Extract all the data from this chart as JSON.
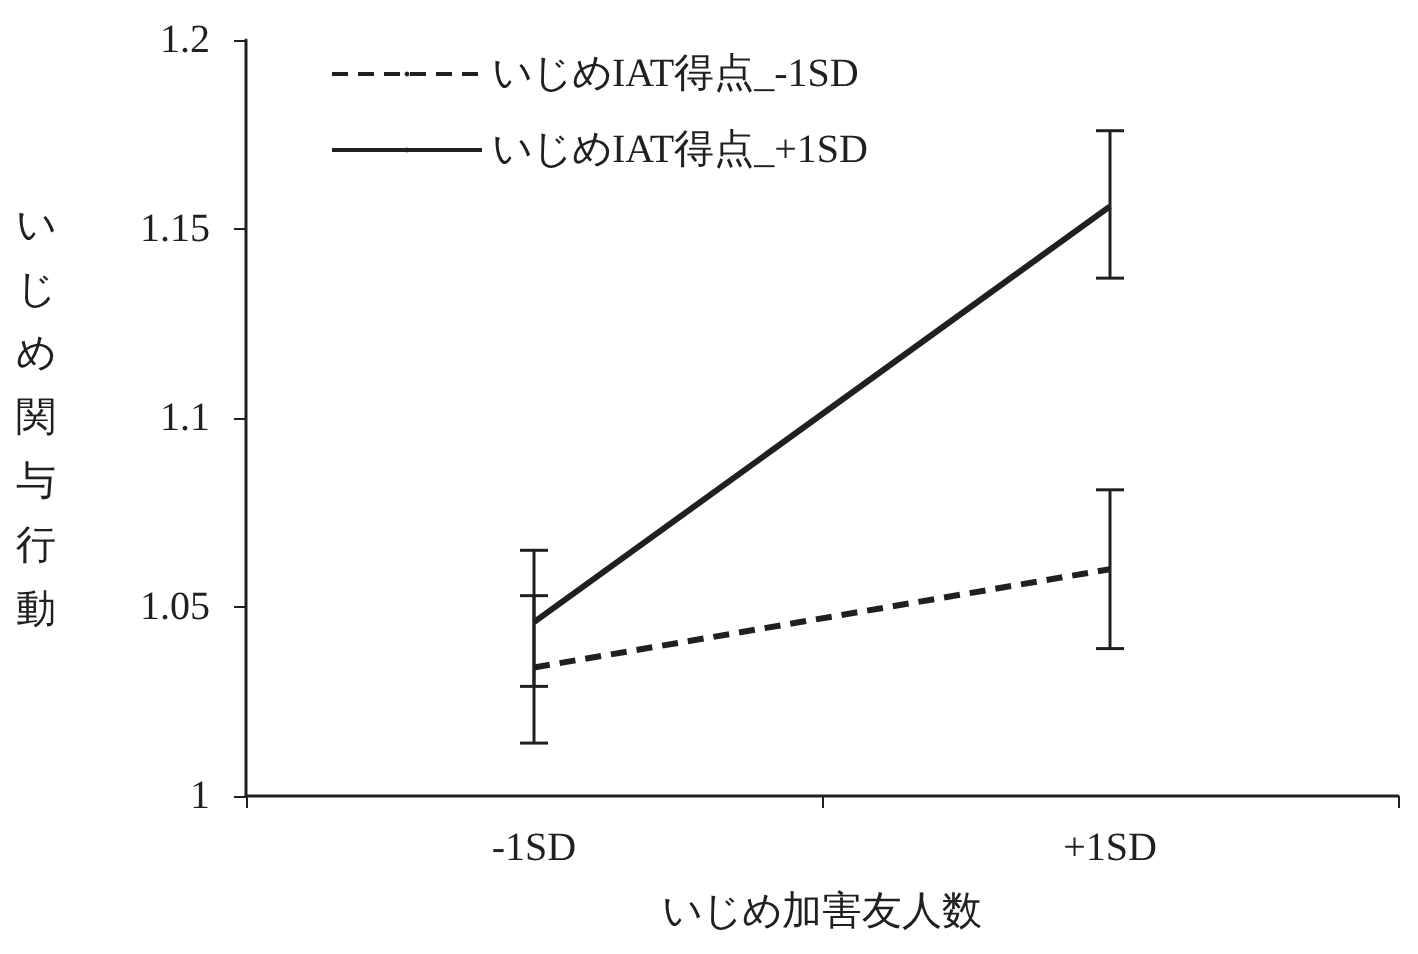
{
  "chart_data": {
    "type": "line",
    "xlabel": "いじめ加害友人数",
    "ylabel": "いじめ関与行動",
    "categories": [
      "-1SD",
      "+1SD"
    ],
    "series": [
      {
        "name": "いじめIAT得点_-1SD",
        "color": "#231f20",
        "line_style": "dashed",
        "values": [
          1.034,
          1.06
        ],
        "errors": [
          [
            1.014,
            1.053
          ],
          [
            1.039,
            1.081
          ]
        ]
      },
      {
        "name": "いじめIAT得点_+1SD",
        "color": "#231f20",
        "line_style": "solid",
        "values": [
          1.046,
          1.156
        ],
        "errors": [
          [
            1.029,
            1.065
          ],
          [
            1.137,
            1.176
          ]
        ]
      }
    ],
    "ylim": [
      1,
      1.2
    ],
    "yticks": [
      1,
      1.05,
      1.1,
      1.15,
      1.2
    ],
    "grid": false,
    "legend": "top left",
    "marker": "none"
  }
}
